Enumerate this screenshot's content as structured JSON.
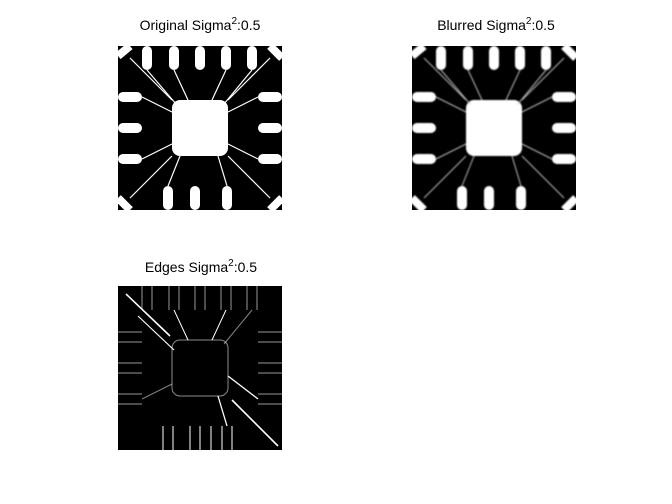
{
  "figure": {
    "panels": [
      {
        "id": "original",
        "title_prefix": "Original Sigma",
        "title_exponent": "2",
        "title_suffix": ":0.5"
      },
      {
        "id": "blurred",
        "title_prefix": "Blurred Sigma",
        "title_exponent": "2",
        "title_suffix": ":0.5"
      },
      {
        "id": "edges",
        "title_prefix": "Edges Sigma",
        "title_exponent": "2",
        "title_suffix": ":0.5"
      }
    ],
    "colors": {
      "background": "#ffffff",
      "image_dark": "#000000",
      "image_light": "#ffffff"
    }
  }
}
